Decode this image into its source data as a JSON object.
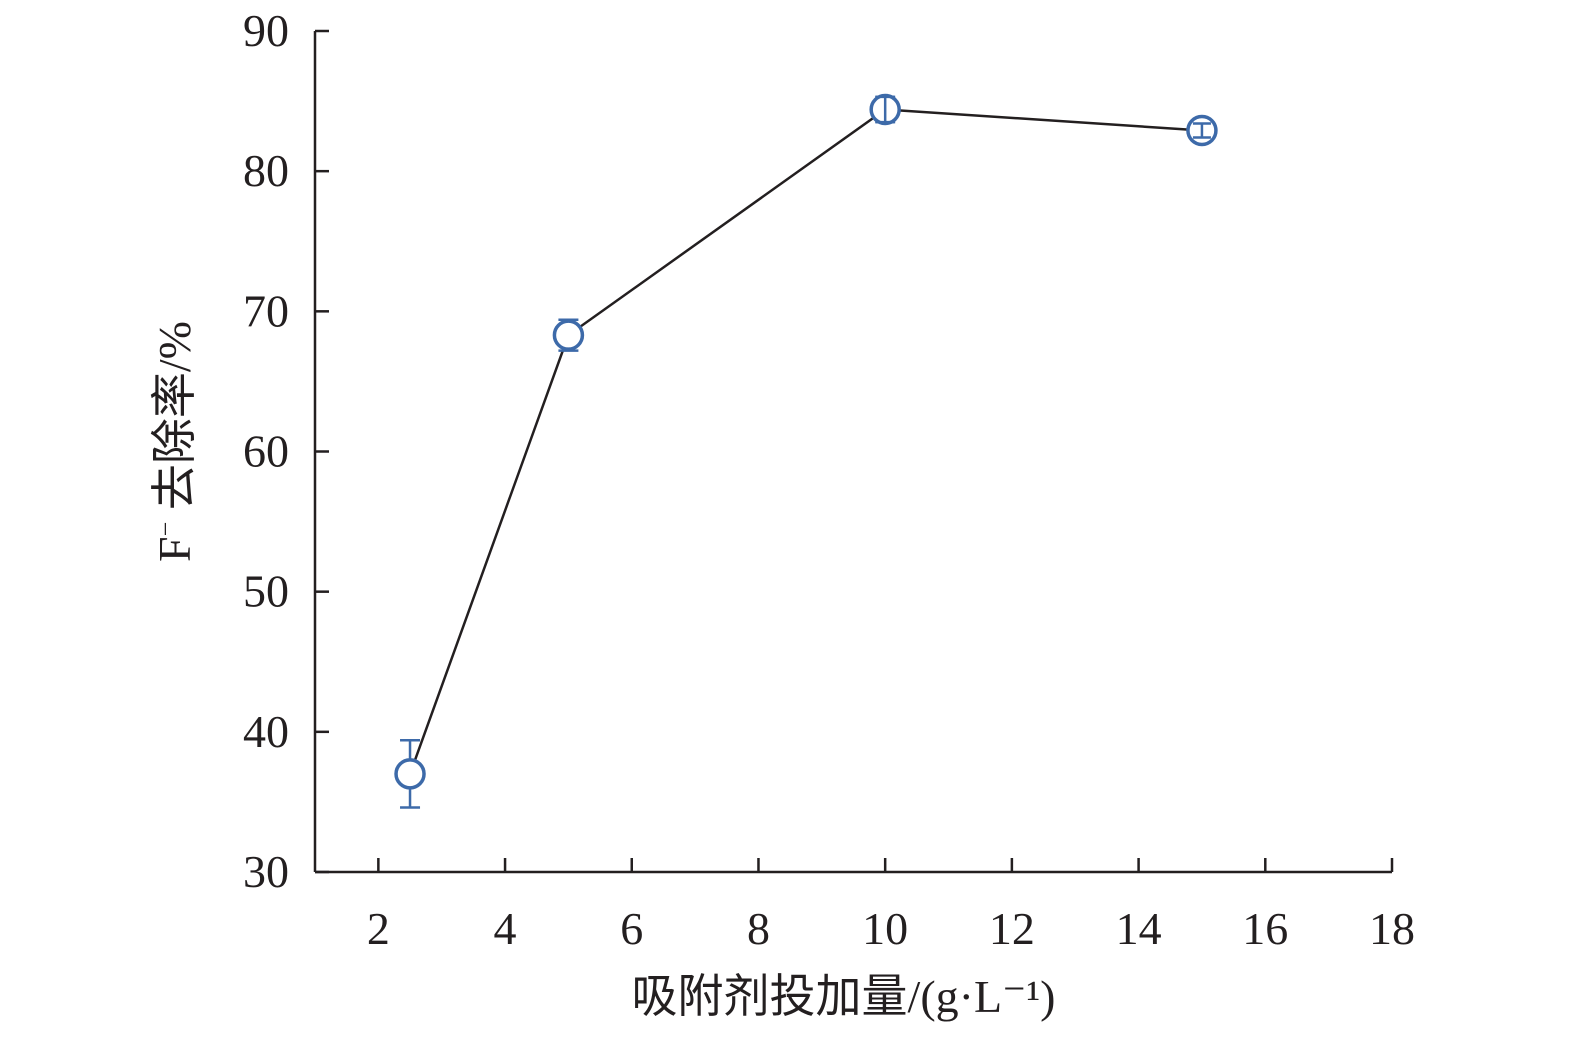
{
  "chart_data": {
    "type": "line",
    "xlabel": "吸附剂投加量/(g·L⁻¹)",
    "ylabel_species": "F",
    "ylabel_charge": "−",
    "ylabel_rest": " 去除率/%",
    "xlim": [
      1,
      18
    ],
    "ylim": [
      30,
      90
    ],
    "xticks": [
      2,
      4,
      6,
      8,
      10,
      12,
      14,
      16,
      18
    ],
    "yticks": [
      30,
      40,
      50,
      60,
      70,
      80,
      90
    ],
    "grid": false,
    "series": [
      {
        "color": "#3d6aa9",
        "marker": "open-circle",
        "points": [
          {
            "x": 2.5,
            "y": 37.0,
            "err": 2.4
          },
          {
            "x": 5,
            "y": 68.3,
            "err": 1.1
          },
          {
            "x": 10,
            "y": 84.4,
            "err": 0.9
          },
          {
            "x": 15,
            "y": 82.9,
            "err": 0.5
          }
        ]
      }
    ]
  }
}
